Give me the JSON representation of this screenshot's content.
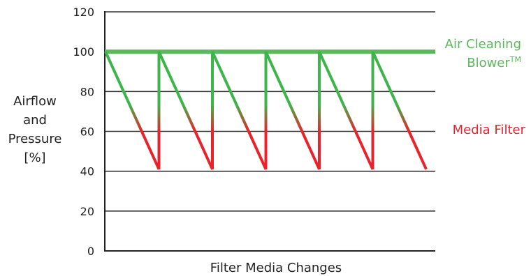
{
  "chart_data": {
    "type": "line",
    "xlabel": "Filter Media Changes",
    "ylabel_lines": [
      "Airflow",
      "and",
      "Pressure",
      "[%]"
    ],
    "ylim": [
      0,
      120
    ],
    "yticks": [
      0,
      20,
      40,
      60,
      80,
      100,
      120
    ],
    "grid": true,
    "colors": {
      "blower": "#5cb85c",
      "filter_high": "#3db54a",
      "filter_low": "#e8232c",
      "axis": "#222222",
      "grid": "#333333"
    },
    "series": [
      {
        "key": "blower",
        "name": "Air Cleaning Blower",
        "superscript": "TM",
        "values": [
          100,
          100
        ]
      },
      {
        "key": "filter",
        "name": "Media Filter",
        "cycles": 6,
        "values_per_cycle": [
          100,
          41
        ]
      }
    ]
  }
}
